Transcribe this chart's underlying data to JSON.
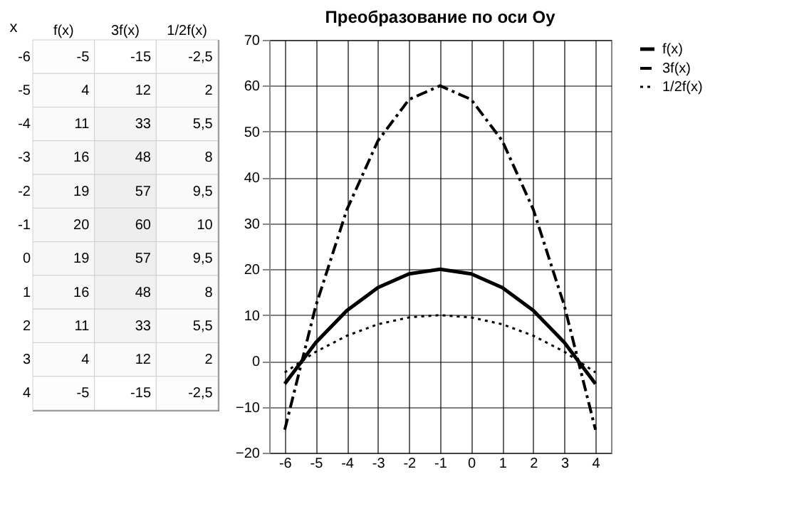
{
  "chart_data": [
    {
      "type": "heatmap",
      "ylabel": "x",
      "categories": [
        "f(x)",
        "3f(x)",
        "1/2f(x)"
      ],
      "y_categories": [
        "-6",
        "-5",
        "-4",
        "-3",
        "-2",
        "-1",
        "0",
        "1",
        "2",
        "3",
        "4"
      ],
      "cells": [
        [
          -5,
          -15,
          -2.5
        ],
        [
          4,
          12,
          2
        ],
        [
          11,
          33,
          5.5
        ],
        [
          16,
          48,
          8
        ],
        [
          19,
          57,
          9.5
        ],
        [
          20,
          60,
          10
        ],
        [
          19,
          57,
          9.5
        ],
        [
          16,
          48,
          8
        ],
        [
          11,
          33,
          5.5
        ],
        [
          4,
          12,
          2
        ],
        [
          -5,
          -15,
          -2.5
        ]
      ],
      "cell_labels": [
        [
          "-5",
          "-15",
          "-2,5"
        ],
        [
          "4",
          "12",
          "2"
        ],
        [
          "11",
          "33",
          "5,5"
        ],
        [
          "16",
          "48",
          "8"
        ],
        [
          "19",
          "57",
          "9,5"
        ],
        [
          "20",
          "60",
          "10"
        ],
        [
          "19",
          "57",
          "9,5"
        ],
        [
          "16",
          "48",
          "8"
        ],
        [
          "11",
          "33",
          "5,5"
        ],
        [
          "4",
          "12",
          "2"
        ],
        [
          "-5",
          "-15",
          "-2,5"
        ]
      ]
    },
    {
      "type": "line",
      "title": "Преобразование по оси Oy",
      "categories": [
        "-6",
        "-5",
        "-4",
        "-3",
        "-2",
        "-1",
        "0",
        "1",
        "2",
        "3",
        "4"
      ],
      "series": [
        {
          "name": "f(x)",
          "color": "#000000",
          "line_style": "solid",
          "values": [
            -5,
            4,
            11,
            16,
            19,
            20,
            19,
            16,
            11,
            4,
            -5
          ]
        },
        {
          "name": "3f(x)",
          "color": "#000000",
          "line_style": "dashdot",
          "values": [
            -15,
            12,
            33,
            48,
            57,
            60,
            57,
            48,
            33,
            12,
            -15
          ]
        },
        {
          "name": "1/2f(x)",
          "color": "#000000",
          "line_style": "dotted",
          "values": [
            -2.5,
            2,
            5.5,
            8,
            9.5,
            10,
            9.5,
            8,
            5.5,
            2,
            -2.5
          ]
        }
      ],
      "ylim": [
        -20,
        70
      ],
      "yticks": [
        -20,
        -10,
        0,
        10,
        20,
        30,
        40,
        50,
        60,
        70
      ],
      "grid": true,
      "legend": "right",
      "marker": "none"
    }
  ]
}
